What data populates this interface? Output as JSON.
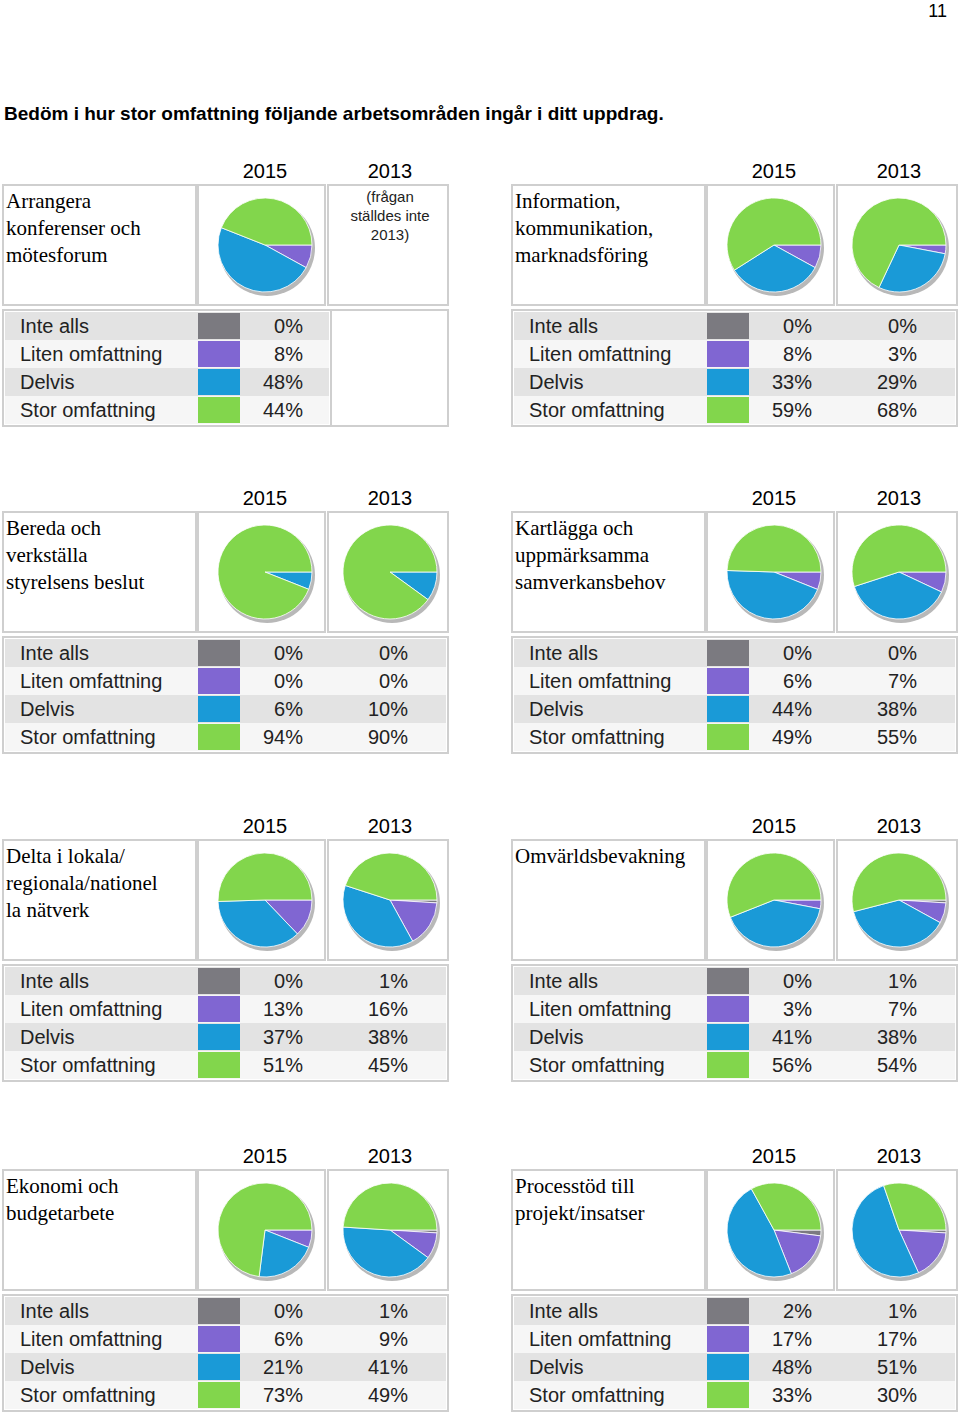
{
  "page_number": "11",
  "heading": "Bedöm i hur stor omfattning följande arbetsområden ingår i ditt uppdrag.",
  "chart_data": [
    {
      "type": "pie",
      "title": "Arrangera\nkonferenser och\nmötesforum",
      "categories": [
        "Inte alls",
        "Liten omfattning",
        "Delvis",
        "Stor omfattning"
      ],
      "colors": [
        "#7b7a80",
        "#8066d2",
        "#1a9ad7",
        "#82d64c"
      ],
      "annotations": [
        "(frågan\nställdes inte\n2013)"
      ],
      "series": [
        {
          "name": "2015",
          "values": [
            0,
            8,
            48,
            44
          ],
          "value_labels": [
            "0%",
            "8%",
            "48%",
            "44%"
          ]
        },
        {
          "name": "2013",
          "values": [
            null,
            null,
            null,
            null
          ]
        }
      ]
    },
    {
      "type": "pie",
      "title": "Information,\nkommunikation,\nmarknadsföring",
      "categories": [
        "Inte alls",
        "Liten omfattning",
        "Delvis",
        "Stor omfattning"
      ],
      "colors": [
        "#7b7a80",
        "#8066d2",
        "#1a9ad7",
        "#82d64c"
      ],
      "series": [
        {
          "name": "2015",
          "values": [
            0,
            8,
            33,
            59
          ],
          "value_labels": [
            "0%",
            "8%",
            "33%",
            "59%"
          ]
        },
        {
          "name": "2013",
          "values": [
            0,
            3,
            29,
            68
          ],
          "value_labels": [
            "0%",
            "3%",
            "29%",
            "68%"
          ]
        }
      ]
    },
    {
      "type": "pie",
      "title": "Bereda och\nverkställa\nstyrelsens beslut",
      "categories": [
        "Inte alls",
        "Liten omfattning",
        "Delvis",
        "Stor omfattning"
      ],
      "colors": [
        "#7b7a80",
        "#8066d2",
        "#1a9ad7",
        "#82d64c"
      ],
      "series": [
        {
          "name": "2015",
          "values": [
            0,
            0,
            6,
            94
          ],
          "value_labels": [
            "0%",
            "0%",
            "6%",
            "94%"
          ]
        },
        {
          "name": "2013",
          "values": [
            0,
            0,
            10,
            90
          ],
          "value_labels": [
            "0%",
            "0%",
            "10%",
            "90%"
          ]
        }
      ]
    },
    {
      "type": "pie",
      "title": "Kartlägga och\nuppmärksamma\nsamverkansbehov",
      "categories": [
        "Inte alls",
        "Liten omfattning",
        "Delvis",
        "Stor omfattning"
      ],
      "colors": [
        "#7b7a80",
        "#8066d2",
        "#1a9ad7",
        "#82d64c"
      ],
      "series": [
        {
          "name": "2015",
          "values": [
            0,
            6,
            44,
            49
          ],
          "value_labels": [
            "0%",
            "6%",
            "44%",
            "49%"
          ]
        },
        {
          "name": "2013",
          "values": [
            0,
            7,
            38,
            55
          ],
          "value_labels": [
            "0%",
            "7%",
            "38%",
            "55%"
          ]
        }
      ]
    },
    {
      "type": "pie",
      "title": "Delta i lokala/\nregionala/nationel\nla nätverk",
      "categories": [
        "Inte alls",
        "Liten omfattning",
        "Delvis",
        "Stor omfattning"
      ],
      "colors": [
        "#7b7a80",
        "#8066d2",
        "#1a9ad7",
        "#82d64c"
      ],
      "series": [
        {
          "name": "2015",
          "values": [
            0,
            13,
            37,
            51
          ],
          "value_labels": [
            "0%",
            "13%",
            "37%",
            "51%"
          ]
        },
        {
          "name": "2013",
          "values": [
            1,
            16,
            38,
            45
          ],
          "value_labels": [
            "1%",
            "16%",
            "38%",
            "45%"
          ]
        }
      ]
    },
    {
      "type": "pie",
      "title": "Omvärldsbevakning",
      "categories": [
        "Inte alls",
        "Liten omfattning",
        "Delvis",
        "Stor omfattning"
      ],
      "colors": [
        "#7b7a80",
        "#8066d2",
        "#1a9ad7",
        "#82d64c"
      ],
      "series": [
        {
          "name": "2015",
          "values": [
            0,
            3,
            41,
            56
          ],
          "value_labels": [
            "0%",
            "3%",
            "41%",
            "56%"
          ]
        },
        {
          "name": "2013",
          "values": [
            1,
            7,
            38,
            54
          ],
          "value_labels": [
            "1%",
            "7%",
            "38%",
            "54%"
          ]
        }
      ]
    },
    {
      "type": "pie",
      "title": "Ekonomi och\nbudgetarbete",
      "categories": [
        "Inte alls",
        "Liten omfattning",
        "Delvis",
        "Stor omfattning"
      ],
      "colors": [
        "#7b7a80",
        "#8066d2",
        "#1a9ad7",
        "#82d64c"
      ],
      "series": [
        {
          "name": "2015",
          "values": [
            0,
            6,
            21,
            73
          ],
          "value_labels": [
            "0%",
            "6%",
            "21%",
            "73%"
          ]
        },
        {
          "name": "2013",
          "values": [
            1,
            9,
            41,
            49
          ],
          "value_labels": [
            "1%",
            "9%",
            "41%",
            "49%"
          ]
        }
      ]
    },
    {
      "type": "pie",
      "title": "Processtöd till\nprojekt/insatser",
      "categories": [
        "Inte alls",
        "Liten omfattning",
        "Delvis",
        "Stor omfattning"
      ],
      "colors": [
        "#7b7a80",
        "#8066d2",
        "#1a9ad7",
        "#82d64c"
      ],
      "series": [
        {
          "name": "2015",
          "values": [
            2,
            17,
            48,
            33
          ],
          "value_labels": [
            "2%",
            "17%",
            "48%",
            "33%"
          ]
        },
        {
          "name": "2013",
          "values": [
            1,
            17,
            51,
            30
          ],
          "value_labels": [
            "1%",
            "17%",
            "51%",
            "30%"
          ]
        }
      ]
    }
  ]
}
